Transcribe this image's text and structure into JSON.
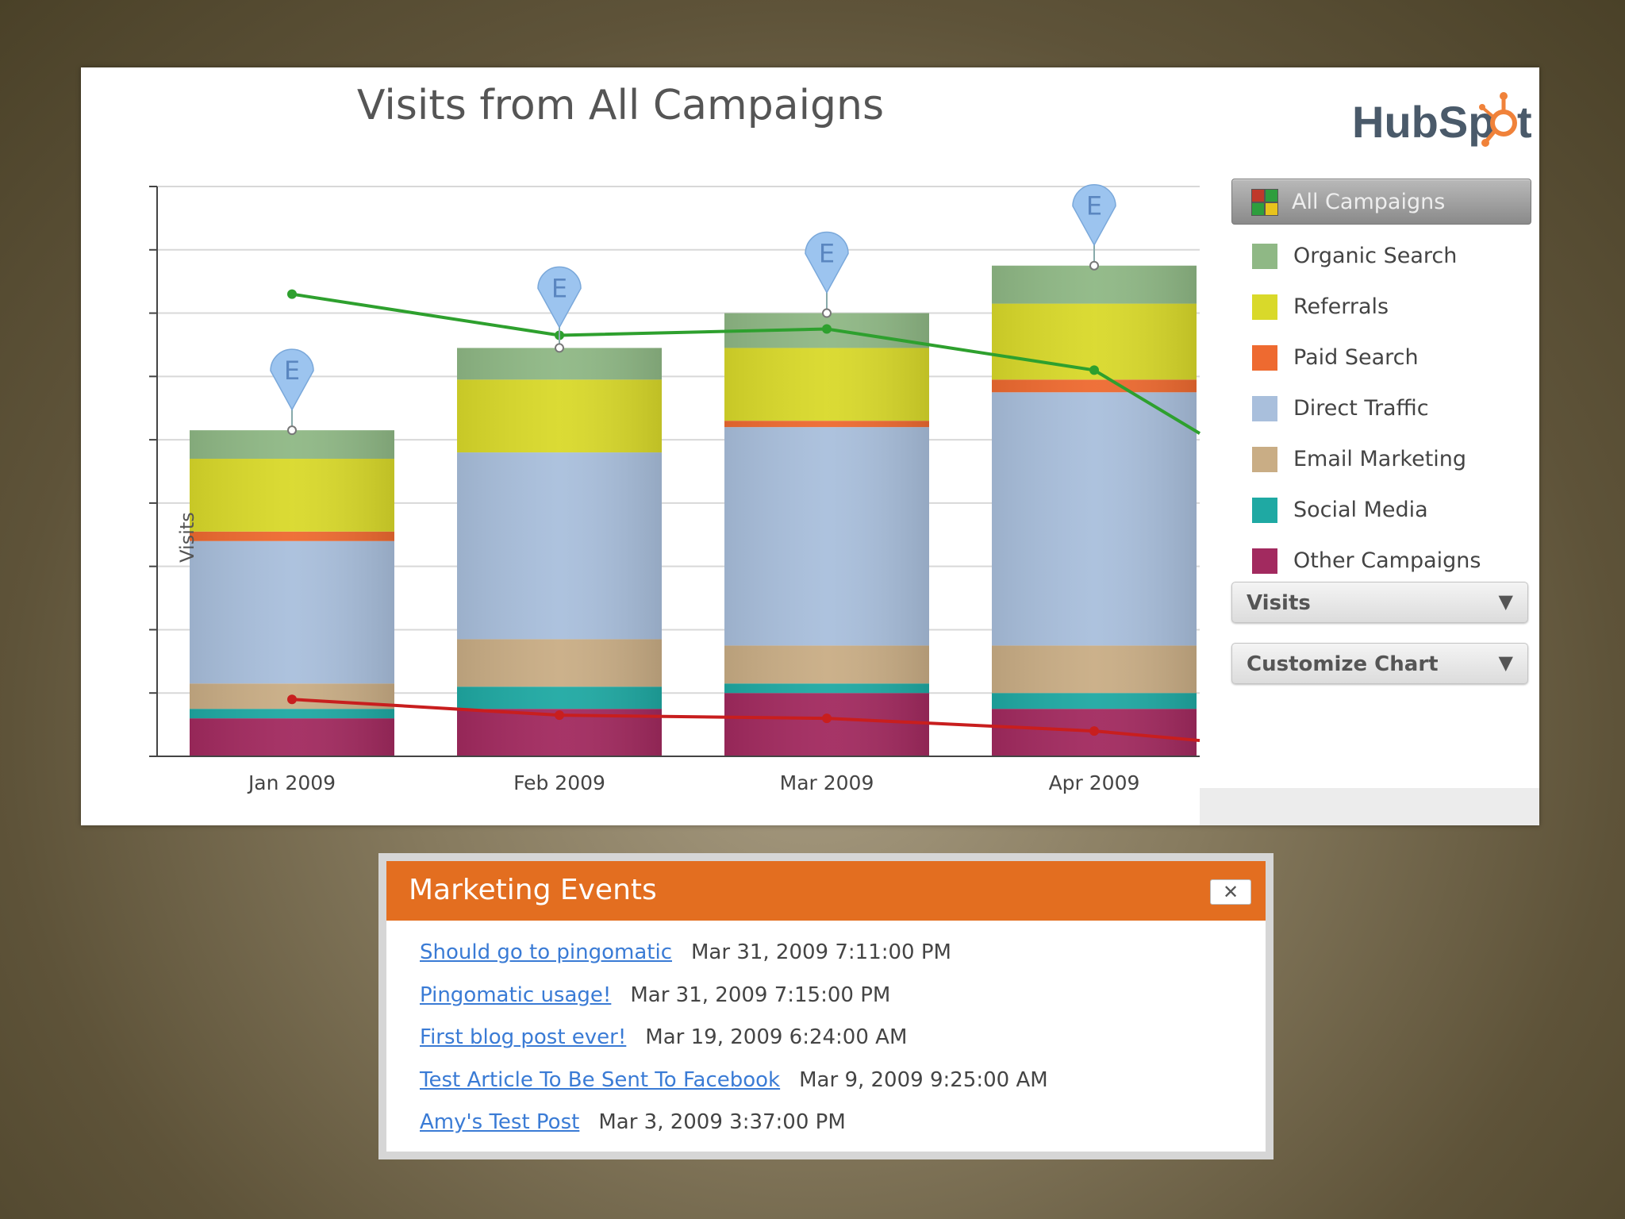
{
  "chart": {
    "title": "Visits from All Campaigns",
    "ylabel": "Visits",
    "event_marker": "E"
  },
  "logo": {
    "text": "HubSpot"
  },
  "legend": {
    "active": "All Campaigns",
    "items": [
      {
        "label": "Organic Search",
        "color": "#8fb885"
      },
      {
        "label": "Referrals",
        "color": "#d9d92a"
      },
      {
        "label": "Paid Search",
        "color": "#ee6a30"
      },
      {
        "label": "Direct Traffic",
        "color": "#a9bfdc"
      },
      {
        "label": "Email Marketing",
        "color": "#c9ad85"
      },
      {
        "label": "Social Media",
        "color": "#1fa9a3"
      },
      {
        "label": "Other Campaigns",
        "color": "#a22a5f"
      }
    ]
  },
  "dropdowns": {
    "metric": "Visits",
    "customize": "Customize Chart"
  },
  "chart_data": {
    "type": "bar",
    "stacked": true,
    "categories": [
      "Jan 2009",
      "Feb 2009",
      "Mar 2009",
      "Apr 2009"
    ],
    "ylabel": "Visits",
    "ylim": [
      0,
      9
    ],
    "grid": true,
    "legend_position": "right",
    "series": [
      {
        "name": "Other Campaigns",
        "color": "#a22a5f",
        "values": [
          0.6,
          0.75,
          1.0,
          0.75
        ]
      },
      {
        "name": "Social Media",
        "color": "#1fa9a3",
        "values": [
          0.15,
          0.35,
          0.15,
          0.25
        ]
      },
      {
        "name": "Email Marketing",
        "color": "#c9ad85",
        "values": [
          0.4,
          0.75,
          0.6,
          0.75
        ]
      },
      {
        "name": "Direct Traffic",
        "color": "#a9bfdc",
        "values": [
          2.25,
          2.95,
          3.45,
          4.0
        ]
      },
      {
        "name": "Paid Search",
        "color": "#ee6a30",
        "values": [
          0.15,
          0.0,
          0.1,
          0.2
        ]
      },
      {
        "name": "Referrals",
        "color": "#d9d92a",
        "values": [
          1.15,
          1.15,
          1.15,
          1.2
        ]
      },
      {
        "name": "Organic Search",
        "color": "#8fb885",
        "values": [
          0.45,
          0.5,
          0.55,
          0.6
        ]
      }
    ],
    "lines": [
      {
        "color": "#2ea02e",
        "values": [
          7.3,
          6.65,
          6.75,
          6.1
        ],
        "end_value": 5.1
      },
      {
        "color": "#c81e1e",
        "values": [
          0.9,
          0.65,
          0.6,
          0.4
        ],
        "end_value": 0.25
      }
    ],
    "events": [
      {
        "category": "Jan 2009",
        "label": "E"
      },
      {
        "category": "Feb 2009",
        "label": "E"
      },
      {
        "category": "Mar 2009",
        "label": "E"
      },
      {
        "category": "Apr 2009",
        "label": "E"
      }
    ]
  },
  "events_panel": {
    "title": "Marketing Events",
    "close_label": "✕",
    "items": [
      {
        "title": "Should go to pingomatic",
        "time": "Mar 31, 2009 7:11:00 PM"
      },
      {
        "title": "Pingomatic usage!",
        "time": "Mar 31, 2009 7:15:00 PM"
      },
      {
        "title": "First blog post ever!",
        "time": "Mar 19, 2009 6:24:00 AM"
      },
      {
        "title": "Test Article To Be Sent To Facebook",
        "time": "Mar 9, 2009 9:25:00 AM"
      },
      {
        "title": "Amy's Test Post",
        "time": "Mar 3, 2009 3:37:00 PM"
      }
    ]
  }
}
